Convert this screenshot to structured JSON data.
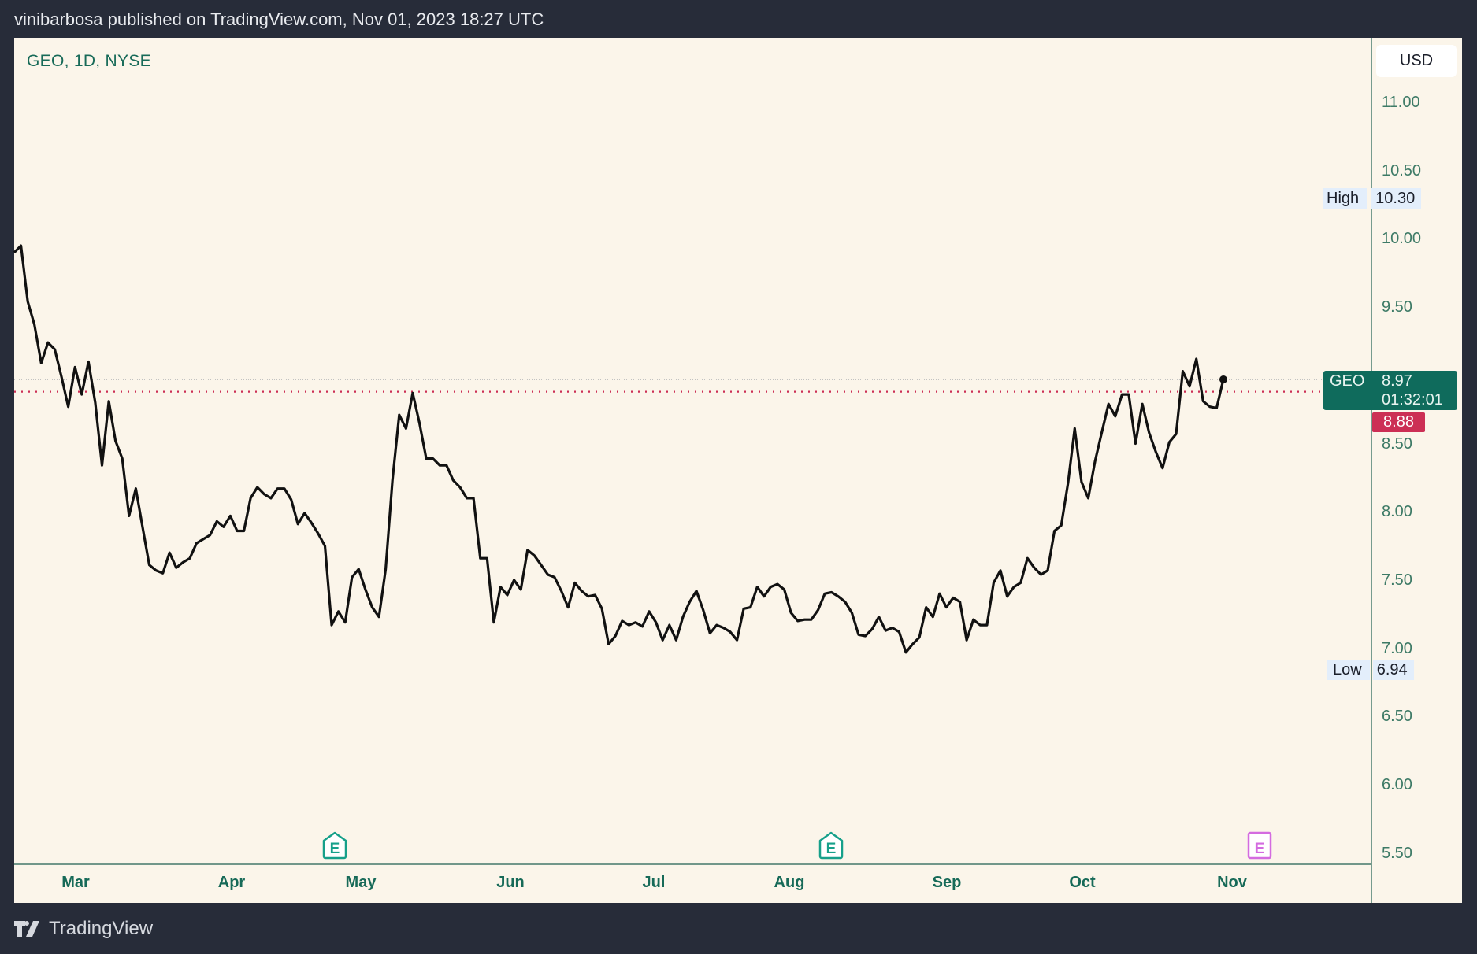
{
  "header": {
    "publisher_text": "vinibarbosa published on TradingView.com, Nov 01, 2023 18:27 UTC"
  },
  "symbol_legend": "GEO, 1D, NYSE",
  "currency": "USD",
  "footer": {
    "brand": "TradingView"
  },
  "colors": {
    "background": "#272c39",
    "chart_bg": "#fbf5ea",
    "line": "#111111",
    "accent": "#0f6b5c",
    "prev_close": "#cc2f55",
    "earnings": "#16a08a",
    "earnings_upcoming": "#d46be0"
  },
  "price_labels": {
    "high": {
      "label": "High",
      "value": "10.30"
    },
    "low": {
      "label": "Low",
      "value": "6.94"
    },
    "last": {
      "symbol": "GEO",
      "value": "8.97",
      "countdown": "01:32:01"
    },
    "prev_close": {
      "value": "8.88"
    }
  },
  "earnings_markers": [
    {
      "letter": "E",
      "month": "late Apr",
      "upcoming": false
    },
    {
      "letter": "E",
      "month": "early Aug",
      "upcoming": false
    },
    {
      "letter": "E",
      "month": "early Nov",
      "upcoming": true
    }
  ],
  "chart_data": {
    "type": "line",
    "title": "GEO, 1D, NYSE",
    "ylim": [
      5.5,
      11.0
    ],
    "y_ticks": [
      "11.00",
      "10.50",
      "10.00",
      "9.50",
      "8.50",
      "8.00",
      "7.50",
      "7.00",
      "6.50",
      "6.00",
      "5.50"
    ],
    "x_ticks": [
      "Mar",
      "Apr",
      "May",
      "Jun",
      "Jul",
      "Aug",
      "Sep",
      "Oct",
      "Nov"
    ],
    "grid": false,
    "last_price": 8.97,
    "prev_close": 8.88,
    "high": 10.3,
    "low": 6.94,
    "values": [
      9.9,
      9.95,
      9.54,
      9.37,
      9.09,
      9.24,
      9.19,
      8.99,
      8.77,
      9.06,
      8.86,
      9.1,
      8.8,
      8.34,
      8.81,
      8.52,
      8.39,
      7.97,
      8.17,
      7.89,
      7.61,
      7.57,
      7.55,
      7.7,
      7.59,
      7.63,
      7.66,
      7.77,
      7.8,
      7.83,
      7.93,
      7.89,
      7.97,
      7.86,
      7.86,
      8.1,
      8.18,
      8.13,
      8.1,
      8.17,
      8.17,
      8.09,
      7.91,
      7.99,
      7.92,
      7.84,
      7.75,
      7.17,
      7.27,
      7.19,
      7.52,
      7.58,
      7.43,
      7.3,
      7.23,
      7.58,
      8.23,
      8.71,
      8.61,
      8.87,
      8.65,
      8.39,
      8.39,
      8.34,
      8.34,
      8.23,
      8.18,
      8.1,
      8.1,
      7.66,
      7.66,
      7.19,
      7.45,
      7.39,
      7.5,
      7.43,
      7.72,
      7.68,
      7.61,
      7.54,
      7.52,
      7.42,
      7.3,
      7.48,
      7.42,
      7.38,
      7.39,
      7.29,
      7.03,
      7.09,
      7.2,
      7.17,
      7.19,
      7.16,
      7.27,
      7.19,
      7.06,
      7.17,
      7.06,
      7.23,
      7.34,
      7.42,
      7.28,
      7.11,
      7.17,
      7.15,
      7.12,
      7.06,
      7.29,
      7.3,
      7.45,
      7.38,
      7.45,
      7.47,
      7.43,
      7.26,
      7.2,
      7.21,
      7.21,
      7.28,
      7.4,
      7.41,
      7.38,
      7.34,
      7.26,
      7.1,
      7.09,
      7.14,
      7.23,
      7.13,
      7.15,
      7.12,
      6.97,
      7.03,
      7.08,
      7.3,
      7.23,
      7.4,
      7.3,
      7.37,
      7.34,
      7.06,
      7.21,
      7.17,
      7.17,
      7.48,
      7.57,
      7.38,
      7.45,
      7.48,
      7.66,
      7.59,
      7.54,
      7.57,
      7.86,
      7.9,
      8.21,
      8.61,
      8.22,
      8.1,
      8.37,
      8.58,
      8.79,
      8.7,
      8.86,
      8.86,
      8.5,
      8.79,
      8.58,
      8.44,
      8.32,
      8.51,
      8.57,
      9.03,
      8.92,
      9.12,
      8.81,
      8.77,
      8.76,
      8.97
    ]
  }
}
